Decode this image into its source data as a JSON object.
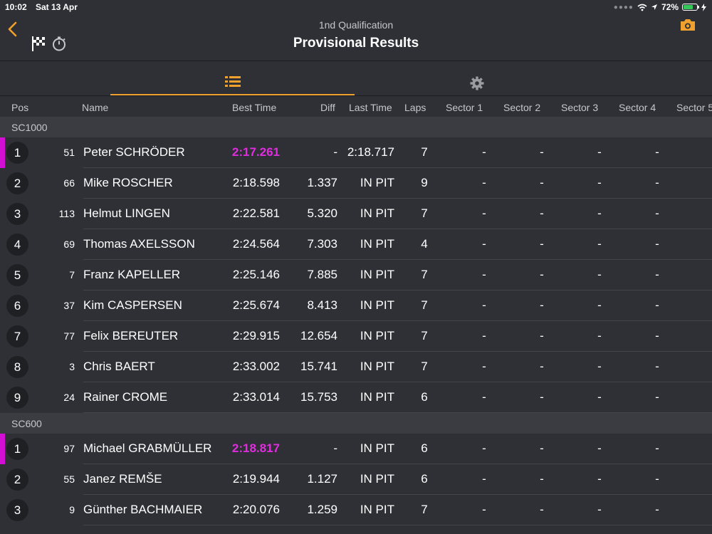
{
  "status": {
    "time": "10:02",
    "date": "Sat 13 Apr",
    "battery": "72%",
    "battery_level": 0.72,
    "battery_color": "#34c759"
  },
  "header": {
    "subtitle": "1nd Qualification",
    "title": "Provisional Results",
    "accent": "#f0a12d"
  },
  "icons": {
    "back": "chevron-left-icon",
    "flag": "checkered-flag-icon",
    "timer": "stopwatch-icon",
    "camera": "camera-icon",
    "list": "list-icon",
    "settings": "gear-icon"
  },
  "columns": {
    "pos": "Pos",
    "name": "Name",
    "best": "Best Time",
    "diff": "Diff",
    "last": "Last Time",
    "laps": "Laps",
    "s1": "Sector 1",
    "s2": "Sector 2",
    "s3": "Sector 3",
    "s4": "Sector 4",
    "s5": "Sector 5"
  },
  "highlight_color": "#d40fd4",
  "groups": [
    {
      "name": "SC1000",
      "rows": [
        {
          "pos": "1",
          "num": "51",
          "name": "Peter SCHRÖDER",
          "best": "2:17.261",
          "fastest": true,
          "diff": "-",
          "last": "2:18.717",
          "laps": "7",
          "s1": "-",
          "s2": "-",
          "s3": "-",
          "s4": "-"
        },
        {
          "pos": "2",
          "num": "66",
          "name": "Mike ROSCHER",
          "best": "2:18.598",
          "fastest": false,
          "diff": "1.337",
          "last": "IN PIT",
          "laps": "9",
          "s1": "-",
          "s2": "-",
          "s3": "-",
          "s4": "-"
        },
        {
          "pos": "3",
          "num": "113",
          "name": "Helmut LINGEN",
          "best": "2:22.581",
          "fastest": false,
          "diff": "5.320",
          "last": "IN PIT",
          "laps": "7",
          "s1": "-",
          "s2": "-",
          "s3": "-",
          "s4": "-"
        },
        {
          "pos": "4",
          "num": "69",
          "name": "Thomas AXELSSON",
          "best": "2:24.564",
          "fastest": false,
          "diff": "7.303",
          "last": "IN PIT",
          "laps": "4",
          "s1": "-",
          "s2": "-",
          "s3": "-",
          "s4": "-"
        },
        {
          "pos": "5",
          "num": "7",
          "name": "Franz KAPELLER",
          "best": "2:25.146",
          "fastest": false,
          "diff": "7.885",
          "last": "IN PIT",
          "laps": "7",
          "s1": "-",
          "s2": "-",
          "s3": "-",
          "s4": "-"
        },
        {
          "pos": "6",
          "num": "37",
          "name": "Kim CASPERSEN",
          "best": "2:25.674",
          "fastest": false,
          "diff": "8.413",
          "last": "IN PIT",
          "laps": "7",
          "s1": "-",
          "s2": "-",
          "s3": "-",
          "s4": "-"
        },
        {
          "pos": "7",
          "num": "77",
          "name": "Felix BEREUTER",
          "best": "2:29.915",
          "fastest": false,
          "diff": "12.654",
          "last": "IN PIT",
          "laps": "7",
          "s1": "-",
          "s2": "-",
          "s3": "-",
          "s4": "-"
        },
        {
          "pos": "8",
          "num": "3",
          "name": "Chris BAERT",
          "best": "2:33.002",
          "fastest": false,
          "diff": "15.741",
          "last": "IN PIT",
          "laps": "7",
          "s1": "-",
          "s2": "-",
          "s3": "-",
          "s4": "-"
        },
        {
          "pos": "9",
          "num": "24",
          "name": "Rainer CROME",
          "best": "2:33.014",
          "fastest": false,
          "diff": "15.753",
          "last": "IN PIT",
          "laps": "6",
          "s1": "-",
          "s2": "-",
          "s3": "-",
          "s4": "-"
        }
      ]
    },
    {
      "name": "SC600",
      "rows": [
        {
          "pos": "1",
          "num": "97",
          "name": "Michael GRABMÜLLER",
          "best": "2:18.817",
          "fastest": true,
          "diff": "-",
          "last": "IN PIT",
          "laps": "6",
          "s1": "-",
          "s2": "-",
          "s3": "-",
          "s4": "-"
        },
        {
          "pos": "2",
          "num": "55",
          "name": "Janez REMŠE",
          "best": "2:19.944",
          "fastest": false,
          "diff": "1.127",
          "last": "IN PIT",
          "laps": "6",
          "s1": "-",
          "s2": "-",
          "s3": "-",
          "s4": "-"
        },
        {
          "pos": "3",
          "num": "9",
          "name": "Günther BACHMAIER",
          "best": "2:20.076",
          "fastest": false,
          "diff": "1.259",
          "last": "IN PIT",
          "laps": "7",
          "s1": "-",
          "s2": "-",
          "s3": "-",
          "s4": "-"
        }
      ]
    }
  ]
}
